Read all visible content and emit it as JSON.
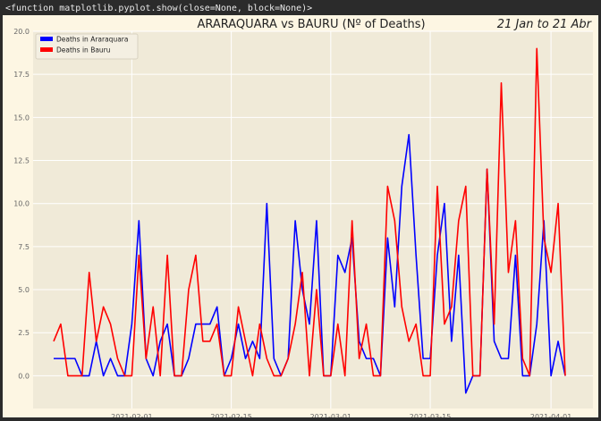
{
  "output_repr": "<function matplotlib.pyplot.show(close=None, block=None)>",
  "chart_data": {
    "type": "line",
    "title": "ARARAQUARA vs BAURU (Nº of Deaths)",
    "right_title": "21 Jan to 21 Abr",
    "xlabel": "",
    "ylabel": "",
    "x_start": "2021-01-21",
    "x_end": "2021-04-03",
    "ylim": [
      -1.9,
      20
    ],
    "grid": true,
    "legend_position": "upper-left",
    "background_color": "#f0ead8",
    "grid_color": "#ffffff",
    "xticks": [
      {
        "date": "2021-02-01",
        "label": "2021-02-01"
      },
      {
        "date": "2021-02-15",
        "label": "2021-02-15"
      },
      {
        "date": "2021-03-01",
        "label": "2021-03-01"
      },
      {
        "date": "2021-03-15",
        "label": "2021-03-15"
      },
      {
        "date": "2021-04-01",
        "label": "2021-04-01"
      }
    ],
    "yticks": [
      {
        "value": 0,
        "label": "0.0"
      },
      {
        "value": 2.5,
        "label": "2.5"
      },
      {
        "value": 5,
        "label": "5.0"
      },
      {
        "value": 7.5,
        "label": "7.5"
      },
      {
        "value": 10,
        "label": "10.0"
      },
      {
        "value": 12.5,
        "label": "12.5"
      },
      {
        "value": 15,
        "label": "15.0"
      },
      {
        "value": 17.5,
        "label": "17.5"
      },
      {
        "value": 20,
        "label": "20.0"
      }
    ],
    "dates": [
      "2021-01-21",
      "2021-01-22",
      "2021-01-23",
      "2021-01-24",
      "2021-01-25",
      "2021-01-26",
      "2021-01-27",
      "2021-01-28",
      "2021-01-29",
      "2021-01-30",
      "2021-01-31",
      "2021-02-01",
      "2021-02-02",
      "2021-02-03",
      "2021-02-04",
      "2021-02-05",
      "2021-02-06",
      "2021-02-07",
      "2021-02-08",
      "2021-02-09",
      "2021-02-10",
      "2021-02-11",
      "2021-02-12",
      "2021-02-13",
      "2021-02-14",
      "2021-02-15",
      "2021-02-16",
      "2021-02-17",
      "2021-02-18",
      "2021-02-19",
      "2021-02-20",
      "2021-02-21",
      "2021-02-22",
      "2021-02-23",
      "2021-02-24",
      "2021-02-25",
      "2021-02-26",
      "2021-02-27",
      "2021-02-28",
      "2021-03-01",
      "2021-03-02",
      "2021-03-03",
      "2021-03-04",
      "2021-03-05",
      "2021-03-06",
      "2021-03-07",
      "2021-03-08",
      "2021-03-09",
      "2021-03-10",
      "2021-03-11",
      "2021-03-12",
      "2021-03-13",
      "2021-03-14",
      "2021-03-15",
      "2021-03-16",
      "2021-03-17",
      "2021-03-18",
      "2021-03-19",
      "2021-03-20",
      "2021-03-21",
      "2021-03-22",
      "2021-03-23",
      "2021-03-24",
      "2021-03-25",
      "2021-03-26",
      "2021-03-27",
      "2021-03-28",
      "2021-03-29",
      "2021-03-30",
      "2021-03-31",
      "2021-04-01",
      "2021-04-02",
      "2021-04-03"
    ],
    "series": [
      {
        "name": "Deaths in Araraquara",
        "color": "#0000ff",
        "values": [
          1,
          1,
          1,
          1,
          0,
          0,
          2,
          0,
          1,
          0,
          0,
          3,
          9,
          1,
          0,
          2,
          3,
          0,
          0,
          1,
          3,
          3,
          3,
          4,
          0,
          1,
          3,
          1,
          2,
          1,
          10,
          1,
          0,
          1,
          9,
          5,
          3,
          9,
          0,
          0,
          7,
          6,
          8,
          2,
          1,
          1,
          0,
          8,
          4,
          11,
          14,
          7,
          1,
          1,
          7,
          10,
          2,
          7,
          -1,
          0,
          0,
          12,
          2,
          1,
          1,
          7,
          0,
          0,
          3,
          9,
          0,
          2,
          0
        ]
      },
      {
        "name": "Deaths in Bauru",
        "color": "#ff0000",
        "values": [
          2,
          3,
          0,
          0,
          0,
          6,
          2,
          4,
          3,
          1,
          0,
          0,
          7,
          1,
          4,
          0,
          7,
          0,
          0,
          5,
          7,
          2,
          2,
          3,
          0,
          0,
          4,
          2,
          0,
          3,
          1,
          0,
          0,
          1,
          3,
          6,
          0,
          5,
          0,
          0,
          3,
          0,
          9,
          1,
          3,
          0,
          0,
          11,
          9,
          4,
          2,
          3,
          0,
          0,
          11,
          3,
          4,
          9,
          11,
          0,
          0,
          12,
          3,
          17,
          6,
          9,
          1,
          0,
          19,
          8,
          6,
          10,
          0
        ]
      }
    ]
  }
}
